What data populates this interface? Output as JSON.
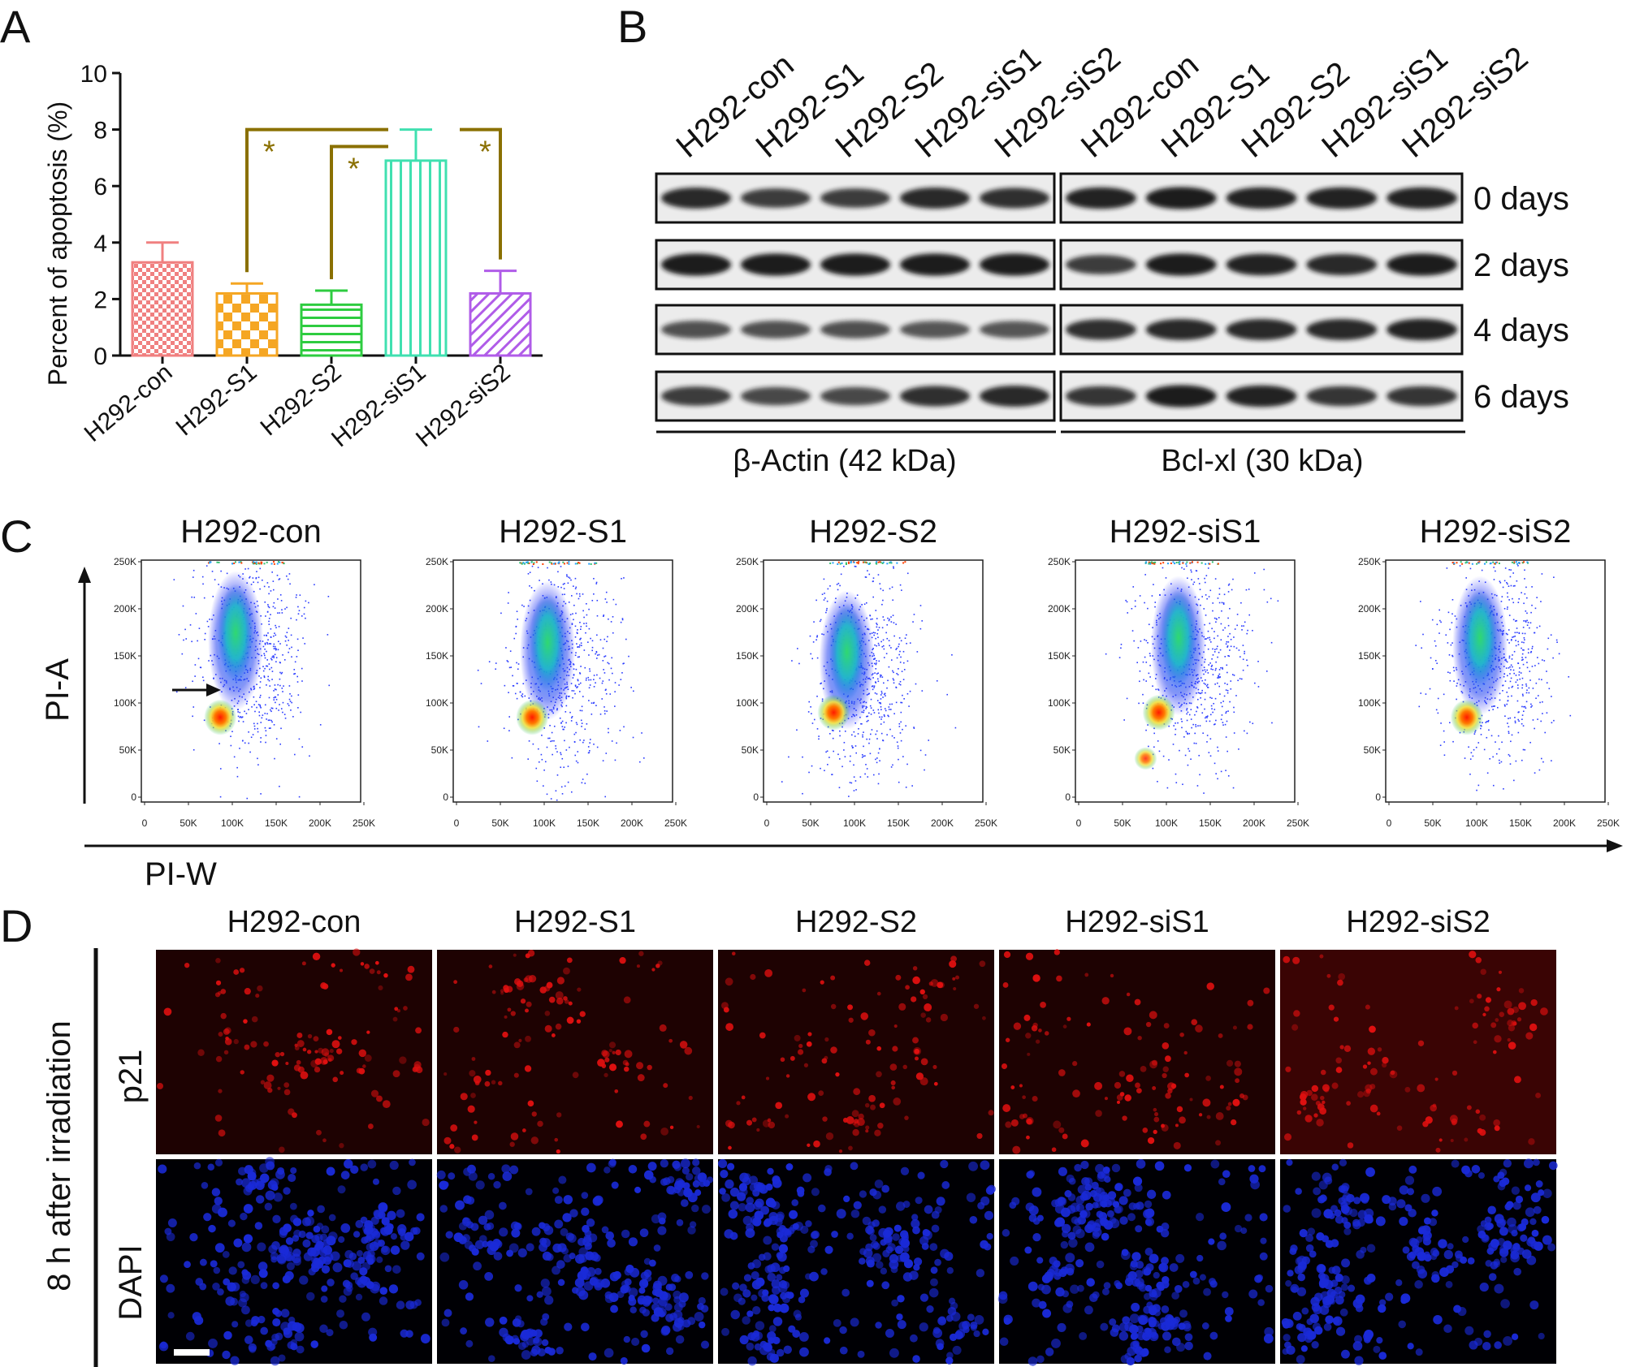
{
  "panels": {
    "a": "A",
    "b": "B",
    "c": "C",
    "d": "D"
  },
  "chart_data": {
    "type": "bar",
    "categories": [
      "H292-con",
      "H292-S1",
      "H292-S2",
      "H292-siS1",
      "H292-siS2"
    ],
    "values": [
      3.3,
      2.2,
      1.8,
      6.9,
      2.2
    ],
    "errors": [
      0.7,
      0.35,
      0.5,
      1.1,
      0.8
    ],
    "title": "",
    "xlabel": "",
    "ylabel": "Percent of apoptosis (%)",
    "ylim": [
      0,
      10
    ],
    "yticks": [
      0,
      2,
      4,
      6,
      8,
      10
    ],
    "colors": [
      "#f08080",
      "#f5a623",
      "#2ecc40",
      "#40e0b0",
      "#b05ce8"
    ],
    "patterns": [
      "check-small",
      "check-large",
      "h-stripes",
      "v-stripes",
      "diag"
    ],
    "significance": [
      {
        "from": 1,
        "to": 3,
        "label": "*"
      },
      {
        "from": 2,
        "to": 3,
        "label": "*"
      },
      {
        "from": 3,
        "to": 4,
        "label": "*"
      }
    ],
    "bracket_color": "#8a7000"
  },
  "blot": {
    "lanes": [
      "H292-con",
      "H292-S1",
      "H292-S2",
      "H292-siS1",
      "H292-siS2"
    ],
    "days": [
      "0 days",
      "2 days",
      "4 days",
      "6 days"
    ],
    "proteins": [
      "β-Actin (42 kDa)",
      "Bcl-xl (30 kDa)"
    ]
  },
  "flow": {
    "titles": [
      "H292-con",
      "H292-S1",
      "H292-S2",
      "H292-siS1",
      "H292-siS2"
    ],
    "yticks": [
      "0",
      "50K",
      "100K",
      "150K",
      "200K",
      "250K"
    ],
    "xticks": [
      "0",
      "50K",
      "100K",
      "150K",
      "200K",
      "250K"
    ],
    "ylabel": "PI-A",
    "xlabel": "PI-W"
  },
  "if": {
    "titles": [
      "H292-con",
      "H292-S1",
      "H292-S2",
      "H292-siS1",
      "H292-siS2"
    ],
    "rows": [
      "p21",
      "DAPI"
    ],
    "side_label": "8 h  after irradiation",
    "p21_color": "#e01010",
    "dapi_color": "#1a2ad8"
  }
}
